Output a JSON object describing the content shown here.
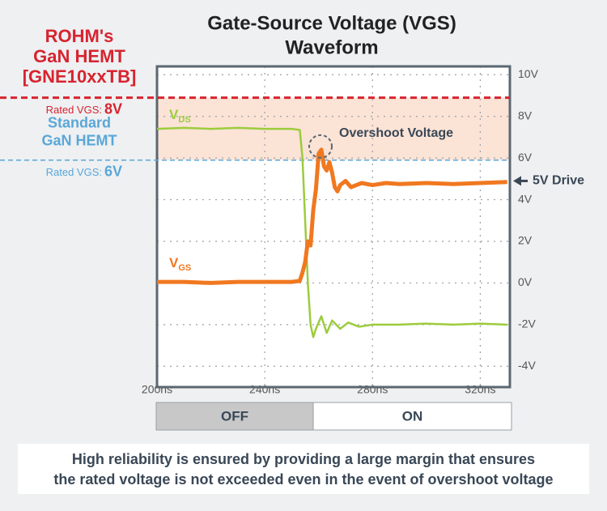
{
  "chart_data": {
    "type": "line",
    "title": [
      "Gate-Source Voltage (VGS)",
      "Waveform"
    ],
    "xlim": [
      200,
      331
    ],
    "ylim": [
      -5,
      10.4
    ],
    "xticks": [
      {
        "value": 200,
        "label": "200ns"
      },
      {
        "value": 240,
        "label": "240ns"
      },
      {
        "value": 280,
        "label": "280ns"
      },
      {
        "value": 320,
        "label": "320ns"
      }
    ],
    "yticks": [
      {
        "value": 10,
        "label": "10V"
      },
      {
        "value": 8,
        "label": "8V"
      },
      {
        "value": 6,
        "label": "6V"
      },
      {
        "value": 4,
        "label": "4V"
      },
      {
        "value": 2,
        "label": "2V"
      },
      {
        "value": 0,
        "label": "0V"
      },
      {
        "value": -2,
        "label": "-2V"
      },
      {
        "value": -4,
        "label": "-4V"
      }
    ],
    "grid": true,
    "series": [
      {
        "name": "VDS",
        "color": "#9ccc3c",
        "x": [
          200,
          210,
          220,
          230,
          240,
          250,
          253,
          254,
          255,
          256,
          257,
          258,
          259,
          261,
          263,
          265,
          268,
          271,
          275,
          280,
          290,
          300,
          310,
          320,
          330
        ],
        "values": [
          7.4,
          7.45,
          7.4,
          7.45,
          7.4,
          7.4,
          7.35,
          6,
          3,
          0,
          -2,
          -2.6,
          -2.2,
          -1.6,
          -2.4,
          -1.8,
          -2.2,
          -1.9,
          -2.1,
          -2,
          -2,
          -1.95,
          -2,
          -1.95,
          -2
        ]
      },
      {
        "name": "VGS",
        "color": "#f07820",
        "x": [
          200,
          210,
          220,
          230,
          240,
          250,
          253,
          254,
          255,
          256,
          257,
          258,
          259,
          260,
          261,
          262,
          263,
          264,
          265,
          266,
          267,
          268,
          270,
          272,
          274,
          276,
          280,
          285,
          290,
          300,
          310,
          320,
          330
        ],
        "values": [
          0.05,
          0.05,
          0,
          0.05,
          0.05,
          0.05,
          0.1,
          0.5,
          1,
          2,
          1.8,
          3.5,
          4.5,
          6.2,
          6.4,
          5.6,
          5.4,
          5.8,
          5.3,
          4.6,
          4.4,
          4.7,
          4.9,
          4.6,
          4.7,
          4.8,
          4.7,
          4.8,
          4.75,
          4.8,
          4.75,
          4.8,
          4.85
        ]
      }
    ],
    "reference_lines": [
      {
        "value": 8.9,
        "color": "#d7242f",
        "title": [
          "ROHM's",
          "GaN HEMT",
          "[GNE10xxTB]"
        ],
        "label": "Rated VGS:",
        "label_value": "8V"
      },
      {
        "value": 5.9,
        "color": "#5aa7d8",
        "title": [
          "Standard",
          "GaN HEMT"
        ],
        "label": "Rated VGS:",
        "label_value": "6V"
      }
    ],
    "band_color": "#fbe3d6",
    "annotations": [
      {
        "text": "Overshoot Voltage",
        "x": 261,
        "y": 6.4
      },
      {
        "text": "5V Drive",
        "y": 4.9
      }
    ],
    "phases": [
      {
        "label": "OFF",
        "start": 200,
        "end": 258
      },
      {
        "label": "ON",
        "start": 258,
        "end": 331
      }
    ],
    "footnote": [
      "High reliability is ensured by providing a large margin that ensures",
      "the rated voltage is not exceeded even in the event of overshoot voltage"
    ]
  }
}
